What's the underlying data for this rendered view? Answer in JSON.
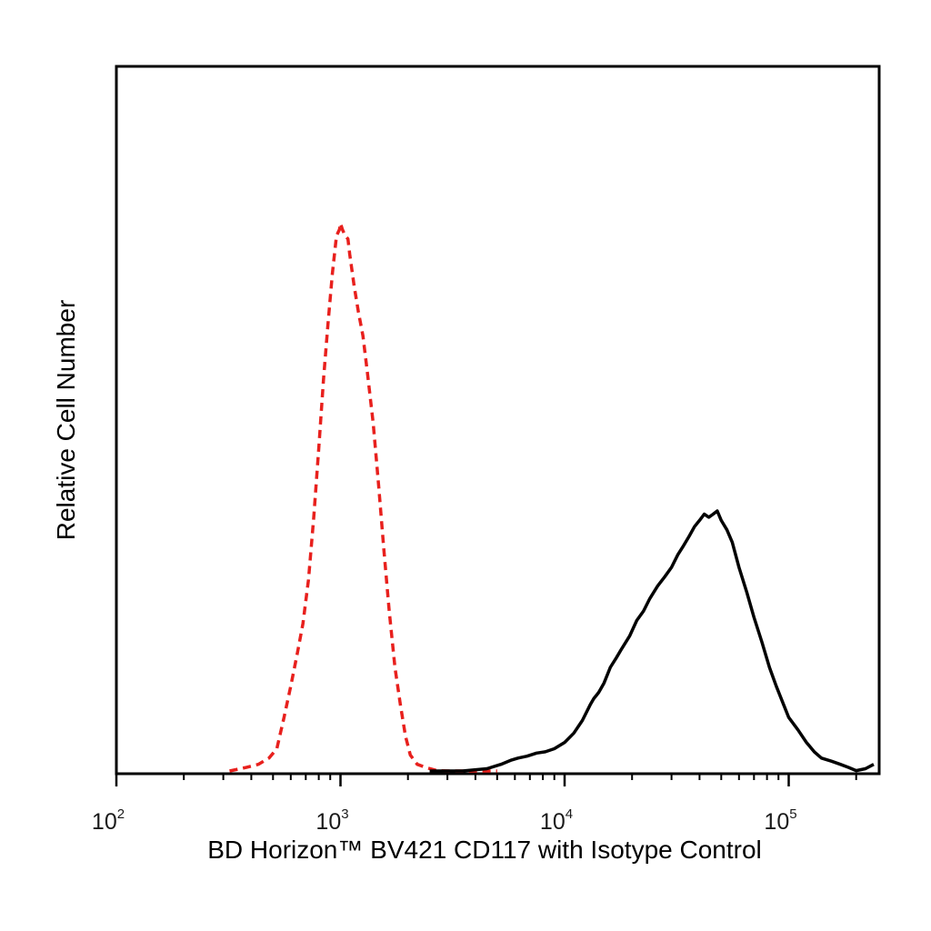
{
  "chart_data": {
    "type": "line",
    "title": "",
    "xlabel": "BD Horizon™ BV421 CD117 with Isotype Control",
    "ylabel": "Relative Cell Number",
    "x_scale": "log",
    "xlim": [
      100,
      250000
    ],
    "ylim": [
      0,
      100
    ],
    "grid": false,
    "legend": "none",
    "x_ticks": [
      {
        "value": 100,
        "base": "10",
        "exp": "2"
      },
      {
        "value": 1000,
        "base": "10",
        "exp": "3"
      },
      {
        "value": 10000,
        "base": "10",
        "exp": "4"
      },
      {
        "value": 100000,
        "base": "10",
        "exp": "5"
      }
    ],
    "series": [
      {
        "color": "#e8201d",
        "line_style": "dashed",
        "x": [
          320,
          380,
          430,
          480,
          520,
          560,
          600,
          640,
          680,
          720,
          760,
          800,
          840,
          880,
          920,
          960,
          990,
          1000,
          1020,
          1050,
          1080,
          1100,
          1150,
          1200,
          1260,
          1320,
          1400,
          1480,
          1560,
          1650,
          1750,
          1850,
          1950,
          2050,
          2200,
          2400,
          2700,
          3100,
          3600,
          4200,
          5000
        ],
        "y": [
          0,
          1,
          1.5,
          2.5,
          4,
          9,
          14,
          19,
          24,
          31,
          41,
          52,
          63,
          72,
          80,
          86,
          87,
          88,
          87,
          86,
          85.5,
          83,
          78,
          74,
          70,
          64,
          56,
          46,
          36,
          26,
          17,
          11,
          6,
          3,
          1.5,
          1,
          0.5,
          0.3,
          0.1,
          0,
          0
        ]
      },
      {
        "color": "#000000",
        "line_style": "solid",
        "x": [
          2500,
          3500,
          4500,
          5200,
          5800,
          6200,
          6800,
          7500,
          8200,
          9000,
          10000,
          11000,
          12000,
          13000,
          13500,
          14200,
          15000,
          16000,
          17000,
          18000,
          19500,
          21000,
          22500,
          24000,
          26000,
          28000,
          30000,
          32000,
          34000,
          36000,
          38000,
          40000,
          42000,
          44000,
          46000,
          48000,
          50000,
          53000,
          56000,
          60000,
          65000,
          70000,
          76000,
          82000,
          88000,
          95000,
          100000,
          110000,
          120000,
          130000,
          140000,
          155000,
          170000,
          185000,
          200000,
          220000,
          240000
        ],
        "y": [
          0,
          0.3,
          0.8,
          1.5,
          2.2,
          2.5,
          2.8,
          3.3,
          3.5,
          4,
          5,
          6.5,
          8.5,
          11,
          12,
          13,
          14.5,
          17,
          18.5,
          20,
          22,
          24.5,
          26,
          28,
          30,
          31.5,
          33,
          35,
          36.5,
          38,
          39.5,
          40.5,
          41.5,
          41,
          41.5,
          42,
          40.5,
          39,
          37,
          33,
          29,
          25,
          21,
          17,
          14,
          11,
          9,
          7,
          5,
          3.5,
          2.5,
          2,
          1.5,
          1,
          0.5,
          0.8,
          1.5
        ]
      }
    ]
  }
}
